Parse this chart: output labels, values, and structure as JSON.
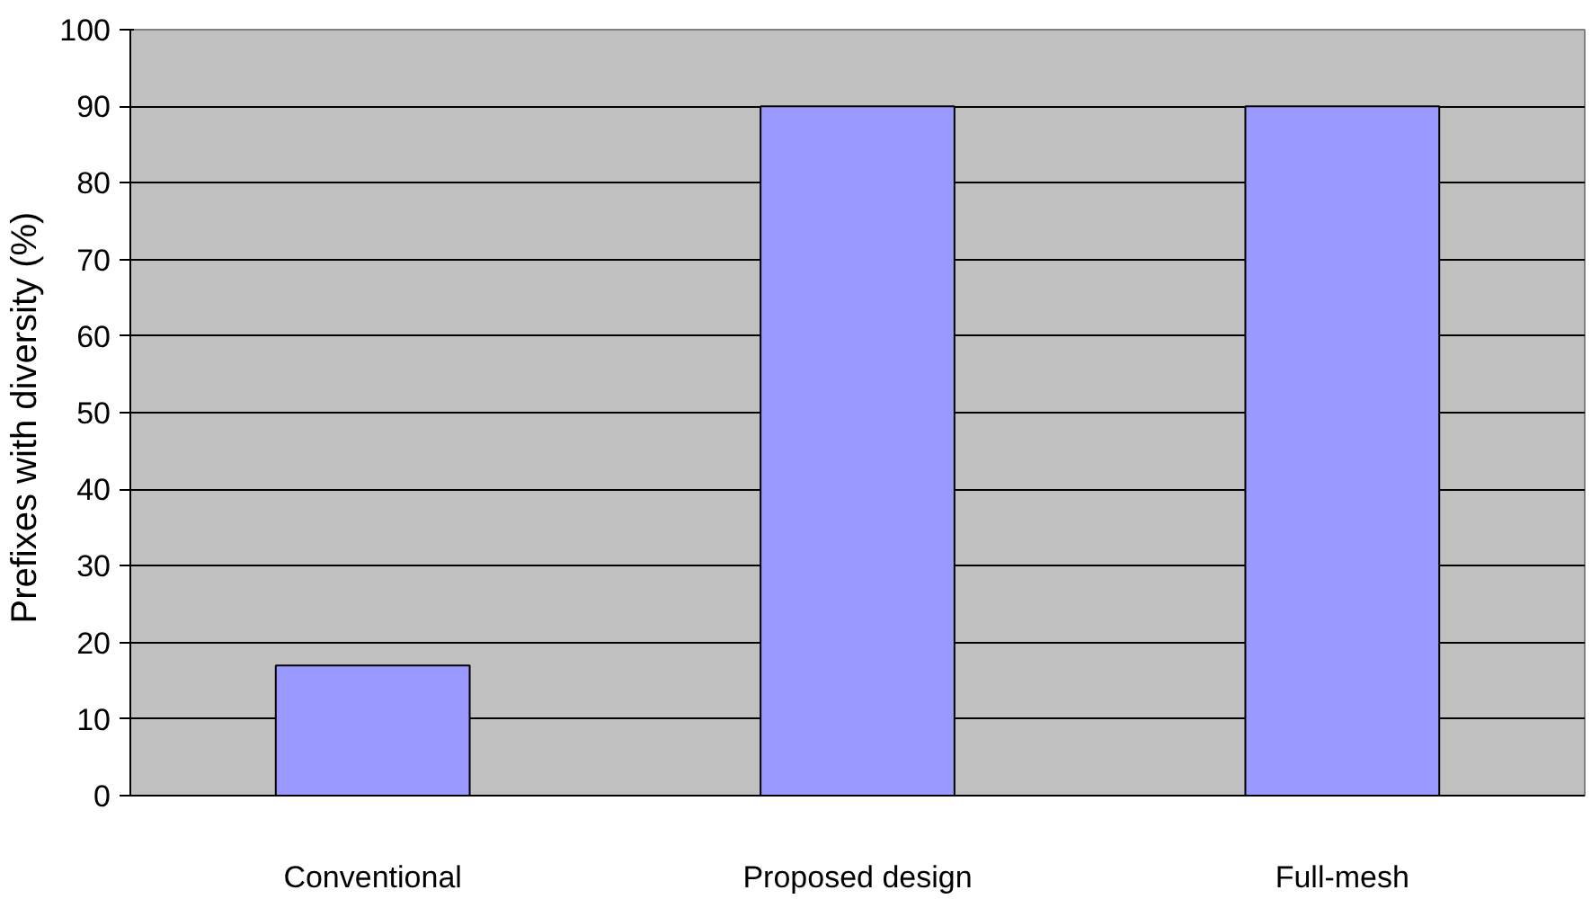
{
  "chart_data": {
    "type": "bar",
    "ylabel": "Prefixes with diversity  (%)",
    "categories": [
      "Conventional",
      "Proposed design",
      "Full-mesh"
    ],
    "values": [
      17,
      90,
      90
    ],
    "color": "#9999ff",
    "ylim": [
      0,
      100
    ],
    "yticks": [
      0,
      10,
      20,
      30,
      40,
      50,
      60,
      70,
      80,
      90,
      100
    ],
    "grid": "y"
  }
}
